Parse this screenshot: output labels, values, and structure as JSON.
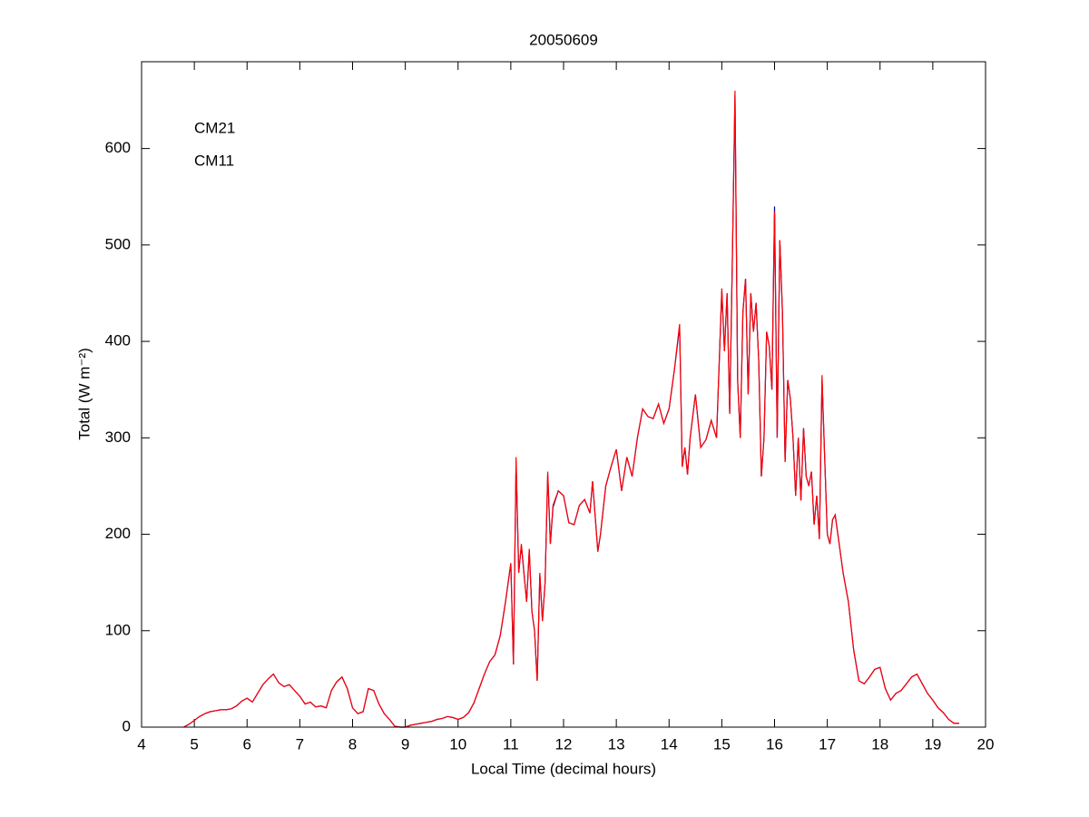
{
  "chart_data": {
    "type": "line",
    "title": "20050609",
    "xlabel": "Local Time (decimal hours)",
    "ylabel": "Total (W m⁻²)",
    "xlim": [
      4,
      20
    ],
    "xticks": [
      4,
      5,
      6,
      7,
      8,
      9,
      10,
      11,
      12,
      13,
      14,
      15,
      16,
      17,
      18,
      19,
      20
    ],
    "ylim": [
      0,
      690
    ],
    "yticks": [
      0,
      100,
      200,
      300,
      400,
      500,
      600
    ],
    "grid": false,
    "legend": "upper left",
    "x": [
      4.8,
      4.9,
      5.0,
      5.1,
      5.2,
      5.3,
      5.4,
      5.5,
      5.6,
      5.7,
      5.8,
      5.9,
      6.0,
      6.1,
      6.2,
      6.3,
      6.4,
      6.5,
      6.6,
      6.7,
      6.8,
      6.9,
      7.0,
      7.1,
      7.2,
      7.3,
      7.4,
      7.5,
      7.6,
      7.7,
      7.8,
      7.9,
      8.0,
      8.1,
      8.2,
      8.3,
      8.4,
      8.5,
      8.6,
      8.7,
      8.8,
      8.9,
      9.0,
      9.1,
      9.2,
      9.3,
      9.4,
      9.5,
      9.6,
      9.7,
      9.8,
      9.9,
      10.0,
      10.1,
      10.2,
      10.3,
      10.4,
      10.5,
      10.6,
      10.7,
      10.8,
      10.9,
      11.0,
      11.05,
      11.1,
      11.15,
      11.2,
      11.3,
      11.35,
      11.4,
      11.45,
      11.5,
      11.55,
      11.6,
      11.65,
      11.7,
      11.75,
      11.8,
      11.9,
      12.0,
      12.1,
      12.2,
      12.3,
      12.4,
      12.5,
      12.55,
      12.65,
      12.7,
      12.8,
      12.9,
      13.0,
      13.1,
      13.2,
      13.3,
      13.4,
      13.5,
      13.6,
      13.7,
      13.8,
      13.9,
      14.0,
      14.1,
      14.2,
      14.25,
      14.3,
      14.35,
      14.4,
      14.5,
      14.6,
      14.7,
      14.8,
      14.9,
      15.0,
      15.05,
      15.1,
      15.15,
      15.2,
      15.25,
      15.3,
      15.35,
      15.4,
      15.45,
      15.5,
      15.55,
      15.6,
      15.65,
      15.7,
      15.75,
      15.8,
      15.85,
      15.9,
      15.95,
      16.0,
      16.05,
      16.1,
      16.15,
      16.2,
      16.25,
      16.3,
      16.35,
      16.4,
      16.45,
      16.5,
      16.55,
      16.6,
      16.65,
      16.7,
      16.75,
      16.8,
      16.85,
      16.9,
      16.95,
      17.0,
      17.05,
      17.1,
      17.15,
      17.2,
      17.3,
      17.4,
      17.5,
      17.6,
      17.7,
      17.8,
      17.9,
      18.0,
      18.1,
      18.2,
      18.3,
      18.4,
      18.5,
      18.6,
      18.7,
      18.8,
      18.9,
      19.0,
      19.1,
      19.2,
      19.3,
      19.4,
      19.5
    ],
    "series": [
      {
        "name": "CM21",
        "color": "#0000aa",
        "values": [
          0,
          3,
          7,
          11,
          14,
          16,
          17,
          18,
          18,
          19,
          22,
          27,
          30,
          26,
          35,
          44,
          50,
          55,
          46,
          42,
          44,
          38,
          32,
          24,
          26,
          21,
          22,
          20,
          38,
          47,
          52,
          40,
          20,
          14,
          16,
          40,
          38,
          24,
          14,
          8,
          1,
          0,
          0,
          2,
          3,
          4,
          5,
          6,
          8,
          9,
          11,
          10,
          8,
          10,
          15,
          25,
          40,
          55,
          68,
          75,
          95,
          130,
          170,
          65,
          275,
          160,
          188,
          130,
          183,
          120,
          100,
          48,
          158,
          110,
          150,
          262,
          190,
          228,
          245,
          240,
          212,
          210,
          230,
          236,
          222,
          255,
          182,
          200,
          250,
          270,
          288,
          245,
          280,
          260,
          300,
          330,
          322,
          320,
          335,
          315,
          330,
          370,
          415,
          270,
          290,
          262,
          300,
          345,
          290,
          298,
          318,
          300,
          452,
          390,
          450,
          325,
          485,
          655,
          360,
          300,
          430,
          465,
          345,
          450,
          410,
          440,
          380,
          260,
          300,
          410,
          395,
          350,
          540,
          300,
          505,
          430,
          275,
          360,
          340,
          300,
          240,
          300,
          235,
          310,
          260,
          250,
          265,
          210,
          240,
          195,
          360,
          280,
          200,
          190,
          215,
          220,
          200,
          160,
          130,
          80,
          48,
          45,
          52,
          60,
          62,
          40,
          28,
          35,
          38,
          45,
          52,
          55,
          45,
          35,
          28,
          20,
          15,
          8,
          4,
          4
        ]
      },
      {
        "name": "CM11",
        "color": "#ff0000",
        "values": [
          0,
          3,
          7,
          11,
          14,
          16,
          17,
          18,
          18,
          19,
          22,
          27,
          30,
          26,
          35,
          44,
          50,
          55,
          46,
          42,
          44,
          38,
          32,
          24,
          26,
          21,
          22,
          20,
          38,
          47,
          52,
          40,
          20,
          14,
          16,
          40,
          38,
          24,
          14,
          8,
          1,
          0,
          0,
          2,
          3,
          4,
          5,
          6,
          8,
          9,
          11,
          10,
          8,
          10,
          15,
          25,
          40,
          55,
          68,
          75,
          95,
          130,
          170,
          65,
          280,
          160,
          190,
          130,
          185,
          120,
          100,
          48,
          160,
          110,
          150,
          265,
          190,
          230,
          245,
          240,
          212,
          210,
          230,
          236,
          222,
          255,
          182,
          200,
          250,
          270,
          288,
          245,
          280,
          260,
          300,
          330,
          322,
          320,
          335,
          315,
          330,
          370,
          418,
          270,
          290,
          262,
          300,
          345,
          290,
          298,
          318,
          300,
          455,
          390,
          450,
          325,
          485,
          660,
          360,
          300,
          430,
          465,
          345,
          450,
          410,
          440,
          380,
          260,
          300,
          410,
          395,
          350,
          535,
          300,
          505,
          430,
          275,
          360,
          340,
          300,
          240,
          300,
          235,
          310,
          260,
          250,
          265,
          210,
          240,
          195,
          365,
          280,
          200,
          190,
          215,
          220,
          200,
          160,
          130,
          80,
          48,
          45,
          52,
          60,
          62,
          40,
          28,
          35,
          38,
          45,
          52,
          55,
          45,
          35,
          28,
          20,
          15,
          8,
          4,
          4
        ]
      }
    ]
  }
}
